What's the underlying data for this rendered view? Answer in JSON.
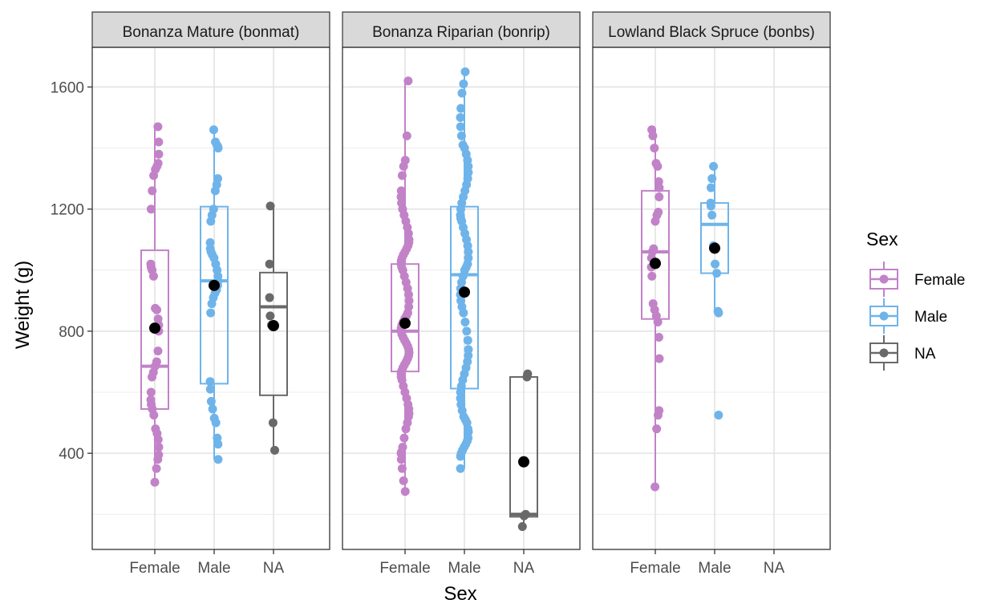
{
  "chart_data": {
    "type": "box-jitter",
    "xlabel": "Sex",
    "ylabel": "Weight (g)",
    "ylim": [
      85,
      1730
    ],
    "y_ticks": [
      400,
      800,
      1200,
      1600
    ],
    "categories": [
      "Female",
      "Male",
      "NA"
    ],
    "legend": {
      "title": "Sex",
      "position": "right",
      "entries": [
        {
          "name": "Female",
          "color": "#C282C8"
        },
        {
          "name": "Male",
          "color": "#6EB4EA"
        },
        {
          "name": "NA",
          "color": "#696969"
        }
      ]
    },
    "mean_point_color": "#000000",
    "grid": true,
    "facets": [
      {
        "label": "Bonanza Mature (bonmat)",
        "groups": [
          {
            "category": "Female",
            "box": {
              "min": 305,
              "q1": 545,
              "median": 685,
              "q3": 1065,
              "max": 1470
            },
            "mean": 810,
            "points": [
              305,
              350,
              380,
              395,
              420,
              445,
              465,
              480,
              525,
              545,
              560,
              575,
              600,
              650,
              665,
              685,
              700,
              735,
              800,
              820,
              840,
              870,
              875,
              980,
              1000,
              1010,
              1020,
              1200,
              1260,
              1310,
              1330,
              1340,
              1350,
              1380,
              1420,
              1470
            ]
          },
          {
            "category": "Male",
            "box": {
              "min": 380,
              "q1": 628,
              "median": 965,
              "q3": 1208,
              "max": 1460
            },
            "mean": 950,
            "points": [
              380,
              430,
              450,
              500,
              515,
              545,
              570,
              610,
              635,
              860,
              890,
              910,
              925,
              935,
              950,
              965,
              980,
              1000,
              1020,
              1040,
              1050,
              1060,
              1070,
              1090,
              1160,
              1180,
              1200,
              1260,
              1280,
              1300,
              1400,
              1405,
              1410,
              1420,
              1460
            ]
          },
          {
            "category": "NA",
            "box": {
              "min": 410,
              "q1": 590,
              "median": 880,
              "q3": 992,
              "max": 1210
            },
            "mean": 818,
            "points": [
              410,
              500,
              820,
              850,
              910,
              1020,
              1210
            ]
          }
        ]
      },
      {
        "label": "Bonanza Riparian (bonrip)",
        "groups": [
          {
            "category": "Female",
            "box": {
              "min": 275,
              "q1": 668,
              "median": 800,
              "q3": 1020,
              "max": 1620
            },
            "mean": 826,
            "points": [
              275,
              310,
              350,
              380,
              400,
              405,
              420,
              450,
              480,
              500,
              520,
              530,
              545,
              560,
              580,
              600,
              620,
              640,
              650,
              660,
              670,
              680,
              690,
              700,
              710,
              720,
              730,
              740,
              750,
              760,
              770,
              780,
              790,
              800,
              810,
              820,
              830,
              840,
              850,
              860,
              880,
              900,
              920,
              940,
              960,
              980,
              1000,
              1010,
              1020,
              1030,
              1040,
              1050,
              1060,
              1070,
              1080,
              1090,
              1100,
              1120,
              1140,
              1160,
              1180,
              1200,
              1220,
              1240,
              1260,
              1310,
              1340,
              1360,
              1440,
              1620
            ]
          },
          {
            "category": "Male",
            "box": {
              "min": 350,
              "q1": 612,
              "median": 985,
              "q3": 1208,
              "max": 1650
            },
            "mean": 928,
            "points": [
              350,
              390,
              400,
              410,
              420,
              430,
              440,
              450,
              470,
              480,
              500,
              510,
              520,
              540,
              560,
              580,
              600,
              620,
              640,
              660,
              680,
              700,
              720,
              740,
              770,
              800,
              830,
              860,
              880,
              900,
              920,
              940,
              960,
              980,
              1000,
              1010,
              1020,
              1040,
              1060,
              1080,
              1100,
              1120,
              1140,
              1160,
              1170,
              1180,
              1200,
              1220,
              1240,
              1260,
              1280,
              1300,
              1320,
              1340,
              1360,
              1380,
              1400,
              1410,
              1440,
              1470,
              1500,
              1530,
              1580,
              1610,
              1650
            ]
          },
          {
            "category": "NA",
            "box": {
              "min": 160,
              "q1": 192,
              "median": 200,
              "q3": 650,
              "max": 660
            },
            "mean": 372,
            "points": [
              160,
              195,
              200,
              650,
              660
            ]
          }
        ]
      },
      {
        "label": "Lowland Black Spruce (bonbs)",
        "groups": [
          {
            "category": "Female",
            "box": {
              "min": 290,
              "q1": 840,
              "median": 1060,
              "q3": 1260,
              "max": 1460
            },
            "mean": 1022,
            "points": [
              290,
              480,
              525,
              540,
              710,
              780,
              830,
              850,
              870,
              890,
              980,
              1010,
              1040,
              1060,
              1070,
              1160,
              1180,
              1190,
              1240,
              1270,
              1290,
              1340,
              1350,
              1400,
              1440,
              1460
            ]
          },
          {
            "category": "Male",
            "box": {
              "min": 860,
              "q1": 990,
              "median": 1150,
              "q3": 1220,
              "max": 1340
            },
            "mean": 1072,
            "points": [
              525,
              860,
              865,
              990,
              1020,
              1080,
              1180,
              1210,
              1220,
              1270,
              1300,
              1340
            ]
          }
        ]
      }
    ]
  }
}
